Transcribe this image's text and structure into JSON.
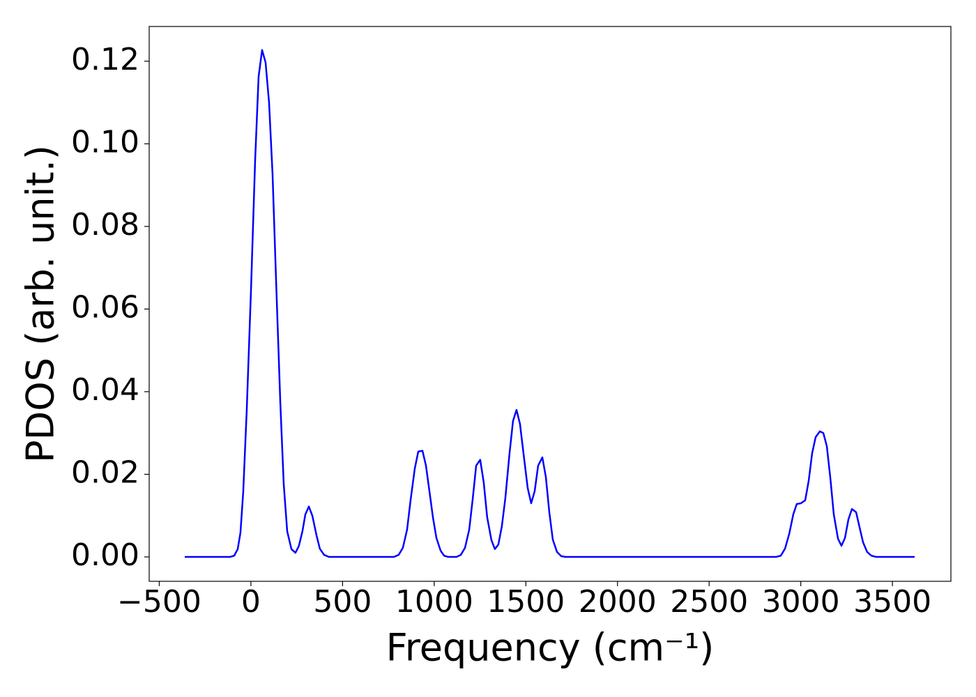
{
  "chart_data": {
    "type": "line",
    "xlabel": "Frequency (cm⁻¹)",
    "ylabel": "PDOS (arb. unit.)",
    "color": "#0000ff",
    "x": [
      -361,
      -114,
      -91,
      -72,
      -57,
      -42,
      -23,
      0,
      23,
      42,
      61,
      80,
      99,
      118,
      137,
      160,
      179,
      198,
      221,
      243,
      262,
      281,
      297,
      316,
      335,
      358,
      376,
      399,
      426,
      780,
      806,
      829,
      852,
      871,
      894,
      913,
      936,
      955,
      974,
      993,
      1012,
      1035,
      1054,
      1076,
      1122,
      1145,
      1168,
      1191,
      1210,
      1229,
      1251,
      1270,
      1289,
      1312,
      1331,
      1350,
      1369,
      1388,
      1411,
      1430,
      1449,
      1468,
      1487,
      1510,
      1529,
      1548,
      1567,
      1590,
      1609,
      1628,
      1647,
      1670,
      1693,
      1715,
      2864,
      2891,
      2914,
      2937,
      2959,
      2978,
      3001,
      3024,
      3043,
      3062,
      3081,
      3104,
      3123,
      3142,
      3161,
      3180,
      3203,
      3222,
      3241,
      3260,
      3279,
      3302,
      3321,
      3340,
      3362,
      3385,
      3412,
      3621
    ],
    "values": [
      0,
      0,
      0.0003,
      0.0019,
      0.0059,
      0.0157,
      0.0353,
      0.064,
      0.096,
      0.1163,
      0.1227,
      0.1197,
      0.11,
      0.0927,
      0.0673,
      0.0378,
      0.0176,
      0.0062,
      0.0019,
      0.001,
      0.0027,
      0.0062,
      0.0103,
      0.0122,
      0.01,
      0.0052,
      0.002,
      0.0005,
      0,
      0,
      0.0005,
      0.0022,
      0.0066,
      0.0137,
      0.0214,
      0.0255,
      0.0257,
      0.0221,
      0.0159,
      0.0096,
      0.0046,
      0.0015,
      0.0003,
      0,
      0,
      0.0005,
      0.0022,
      0.0066,
      0.014,
      0.0221,
      0.0235,
      0.0181,
      0.0096,
      0.0041,
      0.0019,
      0.003,
      0.0074,
      0.0142,
      0.0251,
      0.0329,
      0.0356,
      0.0322,
      0.0251,
      0.0167,
      0.013,
      0.0159,
      0.0221,
      0.0241,
      0.0194,
      0.0108,
      0.0042,
      0.0012,
      0.0002,
      0,
      0,
      0.0003,
      0.002,
      0.0056,
      0.0103,
      0.0128,
      0.013,
      0.0137,
      0.0184,
      0.0251,
      0.029,
      0.0304,
      0.03,
      0.0268,
      0.0192,
      0.0103,
      0.0044,
      0.0027,
      0.0046,
      0.0091,
      0.0116,
      0.0108,
      0.0071,
      0.0035,
      0.0012,
      0.0003,
      0,
      0
    ],
    "xlim": [
      -555,
      3819
    ],
    "ylim": [
      -0.0059,
      0.1284
    ],
    "xticks": [
      {
        "value": -500,
        "label": "−500"
      },
      0,
      500,
      1000,
      1500,
      2000,
      2500,
      3000,
      3500
    ],
    "yticks": [
      {
        "value": 0,
        "label": "0.00"
      },
      {
        "value": 0.02,
        "label": "0.02"
      },
      {
        "value": 0.04,
        "label": "0.04"
      },
      {
        "value": 0.06,
        "label": "0.06"
      },
      {
        "value": 0.08,
        "label": "0.08"
      },
      {
        "value": 0.1,
        "label": "0.10"
      },
      {
        "value": 0.12,
        "label": "0.12"
      }
    ],
    "grid": false
  }
}
